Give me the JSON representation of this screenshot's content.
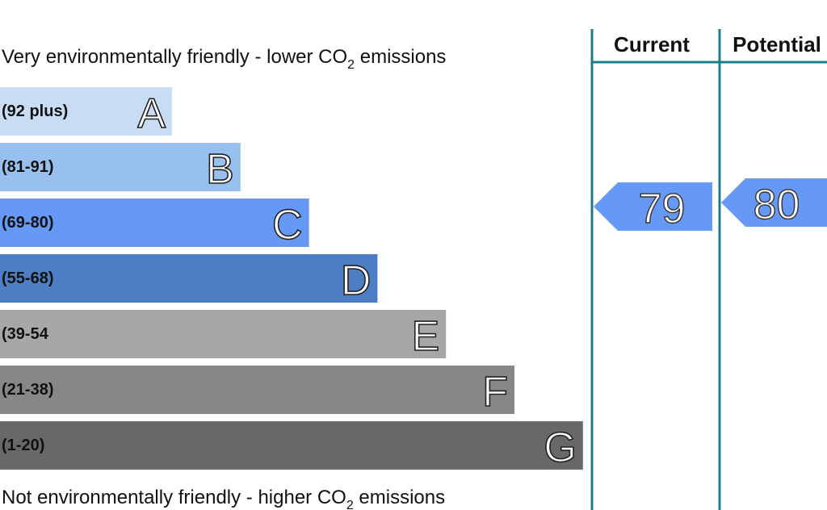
{
  "chart_data": {
    "type": "rating",
    "top_caption": {
      "before": "Very environmentally friendly - lower CO",
      "sub": "2",
      "after": " emissions"
    },
    "bottom_caption": {
      "before": "Not environmentally friendly - higher CO",
      "sub": "2",
      "after": " emissions"
    },
    "bands": [
      {
        "range": "(92 plus)",
        "letter": "A",
        "color": "#c8ddf4"
      },
      {
        "range": "(81-91)",
        "letter": "B",
        "color": "#97c0ee"
      },
      {
        "range": "(69-80)",
        "letter": "C",
        "color": "#6699f5"
      },
      {
        "range": "(55-68)",
        "letter": "D",
        "color": "#4d7dc3"
      },
      {
        "range": "(39-54",
        "letter": "E",
        "color": "#a7a7a7"
      },
      {
        "range": "(21-38)",
        "letter": "F",
        "color": "#878787"
      },
      {
        "range": "(1-20)",
        "letter": "G",
        "color": "#686868"
      }
    ],
    "columns": [
      {
        "name": "Current",
        "value": 79,
        "color": "#6699f5"
      },
      {
        "name": "Potential",
        "value": 80,
        "color": "#6699f5"
      }
    ],
    "rule_color": "#1b7d89"
  }
}
